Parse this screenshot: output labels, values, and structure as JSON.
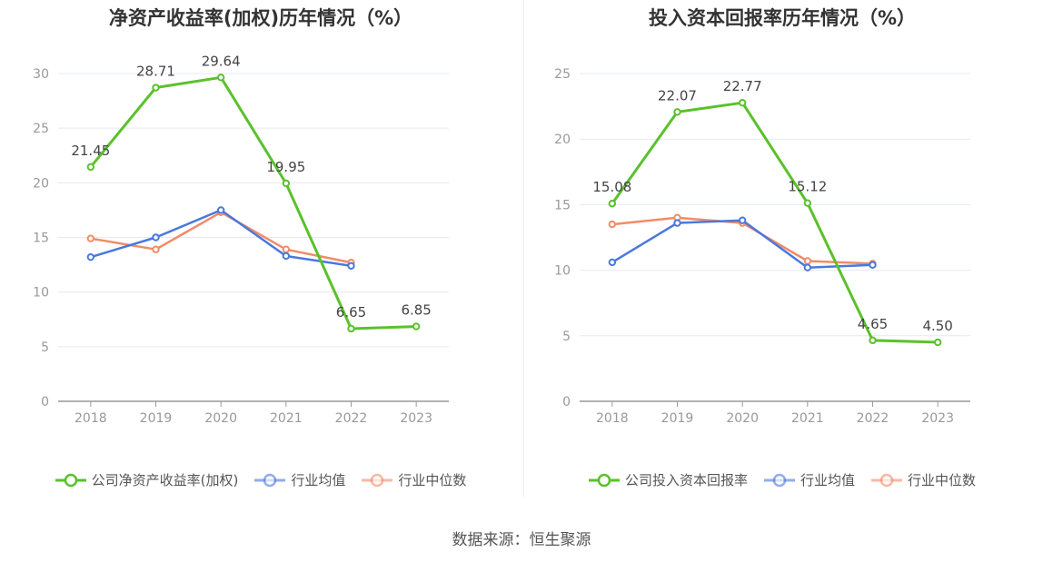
{
  "source": "数据来源：恒生聚源",
  "colors": {
    "company": "#5ac12c",
    "avg": "#4a78dd",
    "median": "#f28b67",
    "grid": "#e6e9f2",
    "axis": "#999999"
  },
  "chart_data": [
    {
      "type": "line",
      "title": "净资产收益率(加权)历年情况（%）",
      "categories": [
        "2018",
        "2019",
        "2020",
        "2021",
        "2022",
        "2023"
      ],
      "ylim": [
        0,
        30
      ],
      "yticks": [
        0,
        5,
        10,
        15,
        20,
        25,
        30
      ],
      "grid": true,
      "legend_position": "bottom",
      "series": [
        {
          "name": "公司净资产收益率(加权)",
          "values": [
            21.45,
            28.71,
            29.64,
            19.95,
            6.65,
            6.85
          ],
          "labels": [
            "21.45",
            "28.71",
            "29.64",
            "19.95",
            "6.65",
            "6.85"
          ]
        },
        {
          "name": "行业均值",
          "values": [
            13.2,
            15.0,
            17.5,
            13.3,
            12.4,
            null
          ]
        },
        {
          "name": "行业中位数",
          "values": [
            14.9,
            13.9,
            17.3,
            13.9,
            12.7,
            null
          ]
        }
      ]
    },
    {
      "type": "line",
      "title": "投入资本回报率历年情况（%）",
      "categories": [
        "2018",
        "2019",
        "2020",
        "2021",
        "2022",
        "2023"
      ],
      "ylim": [
        0,
        25
      ],
      "yticks": [
        0,
        5,
        10,
        15,
        20,
        25
      ],
      "grid": true,
      "legend_position": "bottom",
      "series": [
        {
          "name": "公司投入资本回报率",
          "values": [
            15.08,
            22.07,
            22.77,
            15.12,
            4.65,
            4.5
          ],
          "labels": [
            "15.08",
            "22.07",
            "22.77",
            "15.12",
            "4.65",
            "4.50"
          ]
        },
        {
          "name": "行业均值",
          "values": [
            10.6,
            13.6,
            13.8,
            10.2,
            10.4,
            null
          ]
        },
        {
          "name": "行业中位数",
          "values": [
            13.5,
            14.0,
            13.6,
            10.7,
            10.5,
            null
          ]
        }
      ]
    }
  ]
}
